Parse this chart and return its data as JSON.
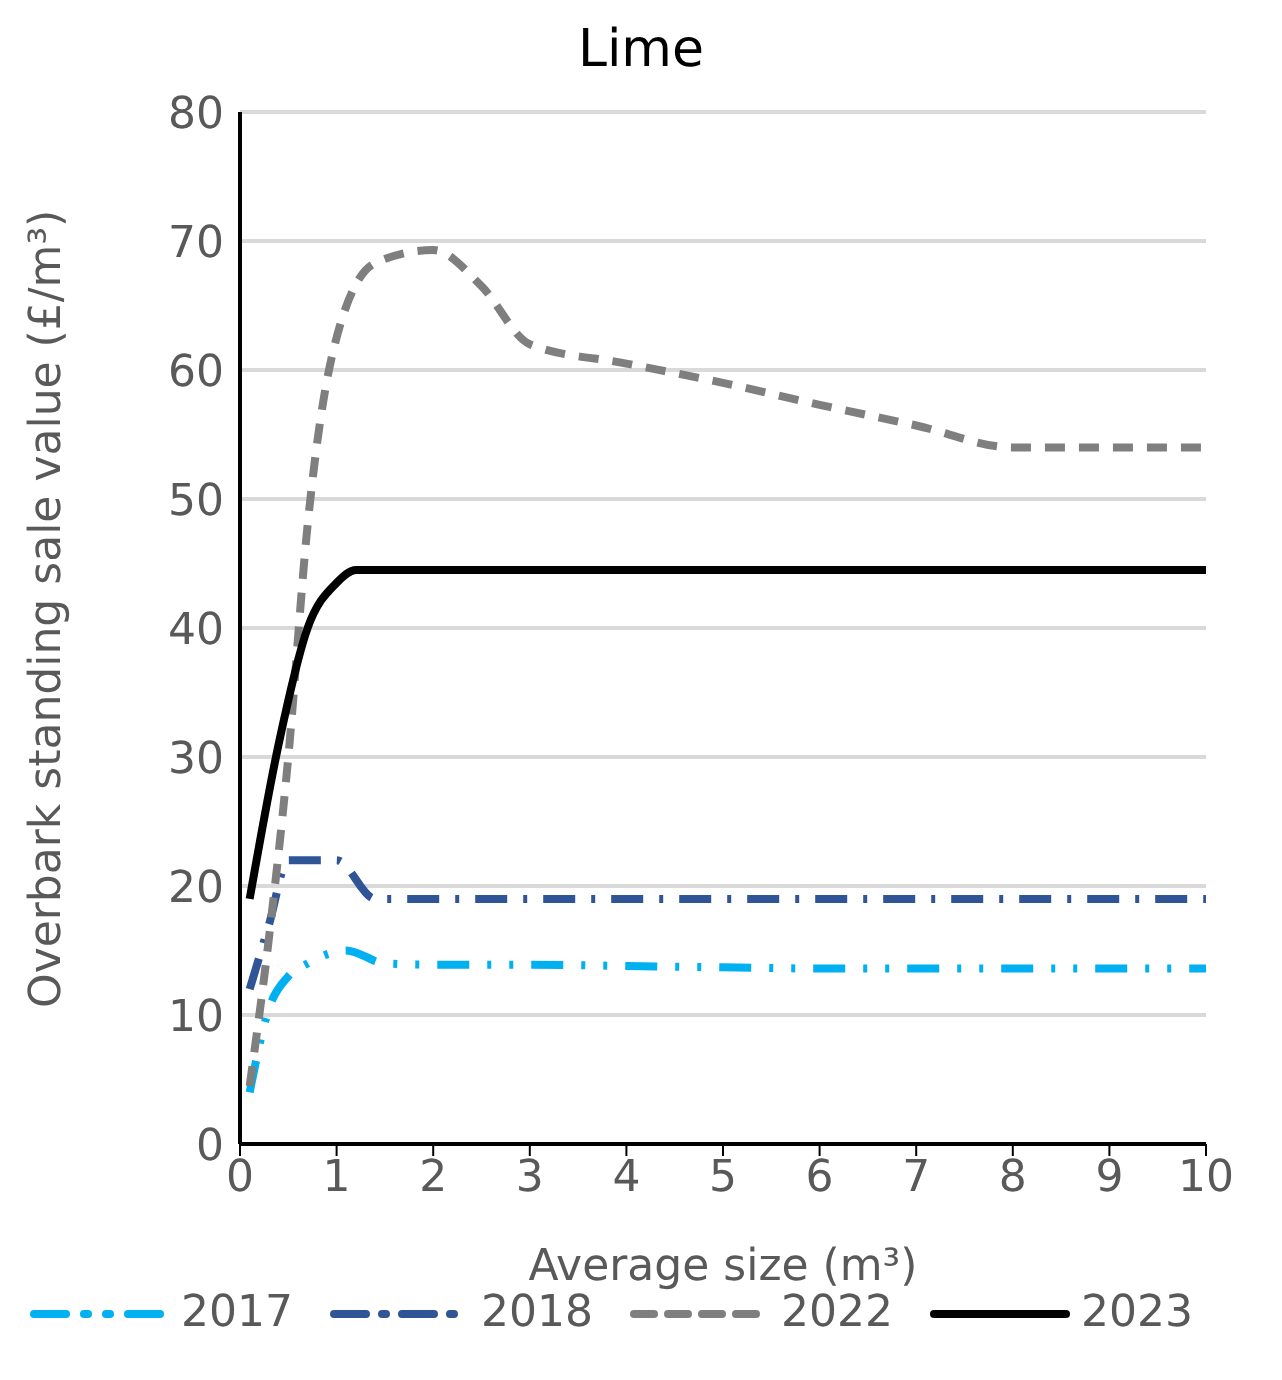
{
  "chart_data": {
    "type": "line",
    "title": "Lime",
    "xlabel": "Average size (m³)",
    "ylabel": "Overbark standing sale value (£/m³)",
    "xlim": [
      0,
      10
    ],
    "xticks": [
      0,
      1,
      2,
      3,
      4,
      5,
      6,
      7,
      8,
      9,
      10
    ],
    "ylim": [
      0,
      80
    ],
    "yticks": [
      0,
      10,
      20,
      30,
      40,
      50,
      60,
      70,
      80
    ],
    "grid": "y",
    "legend": "bottom",
    "marker": "none",
    "series": [
      {
        "name": "2017",
        "color": "#00b0f0",
        "line_style": "dashdotdot",
        "x": [
          0.1,
          0.3,
          0.5,
          0.7,
          1.1,
          1.5,
          2,
          3,
          4,
          5,
          6,
          7,
          8,
          9,
          10
        ],
        "values": [
          4,
          10.5,
          13,
          14,
          15,
          14,
          13.9,
          13.9,
          13.8,
          13.7,
          13.6,
          13.6,
          13.6,
          13.6,
          13.6
        ]
      },
      {
        "name": "2018",
        "color": "#2f5597",
        "line_style": "dashdot",
        "x": [
          0.1,
          0.3,
          0.5,
          1,
          1.4,
          2,
          3,
          4,
          5,
          6,
          7,
          8,
          9,
          10
        ],
        "values": [
          12,
          17,
          22,
          22,
          19,
          19,
          19,
          19,
          19,
          19,
          19,
          19,
          19,
          19
        ]
      },
      {
        "name": "2022",
        "color": "#7f7f7f",
        "line_style": "dashed",
        "x": [
          0.1,
          0.3,
          0.5,
          0.7,
          0.95,
          1.4,
          2,
          2.5,
          3,
          4,
          5,
          6,
          7,
          8,
          9,
          10
        ],
        "values": [
          4.5,
          16,
          30,
          48,
          61,
          68.3,
          69.3,
          66.5,
          62,
          60.5,
          59,
          57.3,
          55.7,
          54,
          54,
          54
        ]
      },
      {
        "name": "2023",
        "color": "#000000",
        "line_style": "solid",
        "x": [
          0.1,
          0.4,
          0.7,
          1,
          1.2,
          2,
          3,
          4,
          5,
          6,
          7,
          8,
          9,
          10
        ],
        "values": [
          19,
          31,
          40,
          43.5,
          44.5,
          44.5,
          44.5,
          44.5,
          44.5,
          44.5,
          44.5,
          44.5,
          44.5,
          44.5
        ]
      }
    ]
  }
}
